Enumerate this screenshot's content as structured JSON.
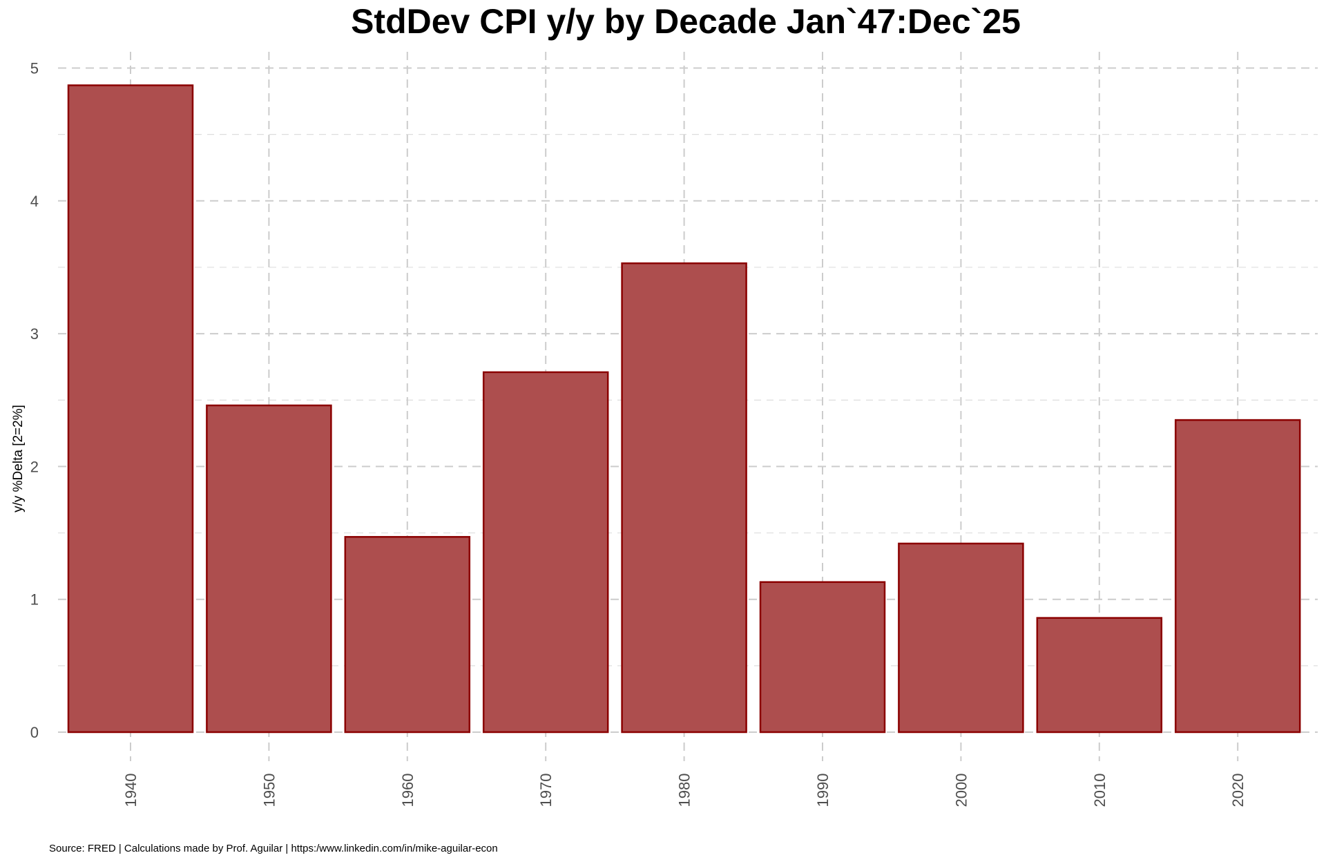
{
  "chart_data": {
    "type": "bar",
    "title": "StdDev CPI y/y by Decade Jan`47:Dec`25",
    "xlabel": "",
    "ylabel": "y/y %Delta [2=2%]",
    "categories": [
      "1940",
      "1950",
      "1960",
      "1970",
      "1980",
      "1990",
      "2000",
      "2010",
      "2020"
    ],
    "values": [
      4.87,
      2.46,
      1.47,
      2.71,
      3.53,
      1.13,
      1.42,
      0.86,
      2.35
    ],
    "ylim": [
      0,
      5
    ],
    "yticks": [
      "0",
      "1",
      "2",
      "3",
      "4",
      "5"
    ],
    "grid": true,
    "legend": "none",
    "caption": "Source: FRED | Calculations made by Prof. Aguilar | https:/www.linkedin.com/in/mike-aguilar-econ",
    "colors": {
      "bar_fill": "#ad4e4e",
      "bar_stroke": "#8b0000"
    }
  }
}
